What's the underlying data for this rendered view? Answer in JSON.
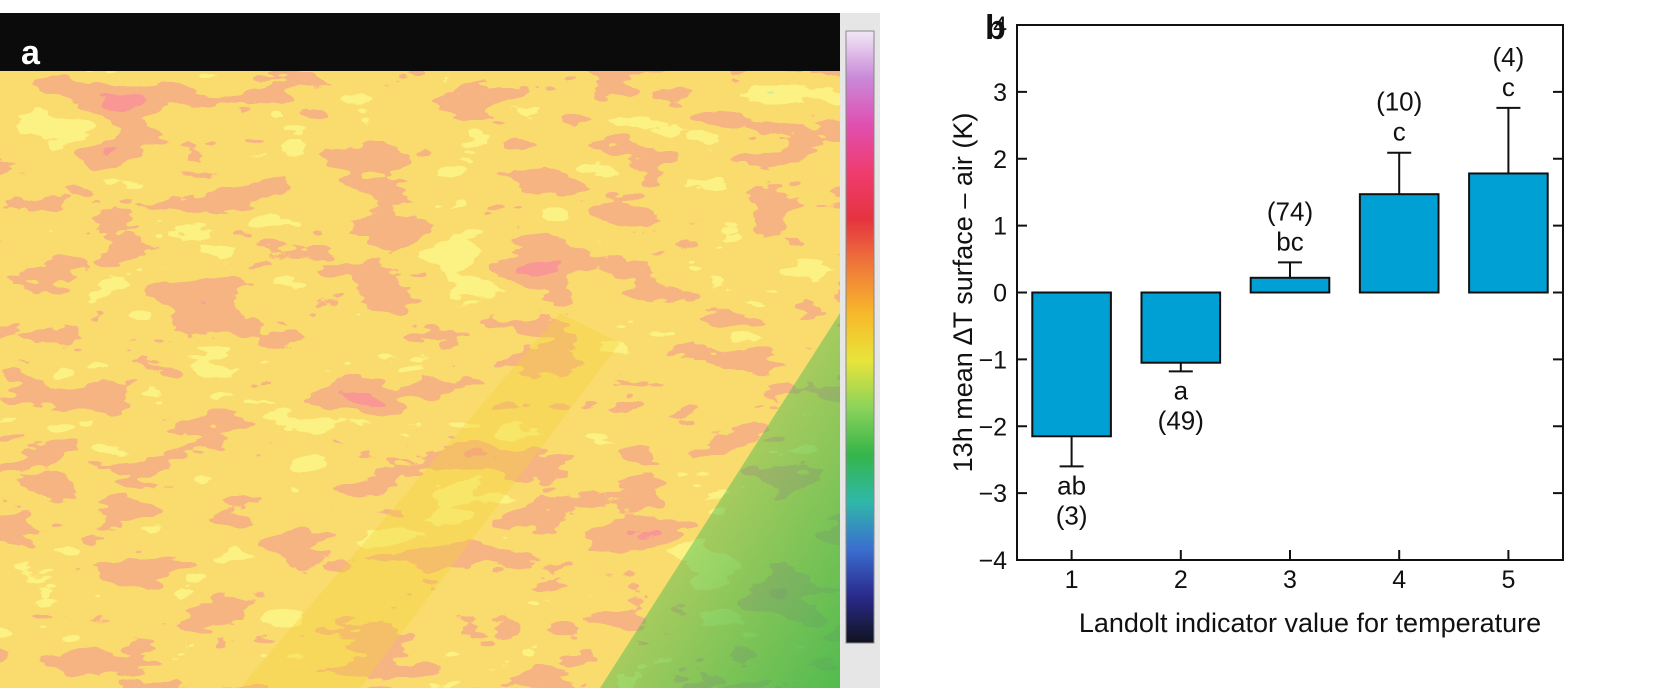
{
  "panel_a": {
    "letter": "a",
    "thermal_palette": [
      "#10131f",
      "#2a2a8c",
      "#3a6fd0",
      "#2fb8a8",
      "#35b54a",
      "#8cd35a",
      "#e8e43a",
      "#f7b82a",
      "#f07a3a",
      "#e5333f",
      "#ef3c6e",
      "#e04fb0",
      "#c989d8",
      "#f2e8f6"
    ],
    "sky_color": "#0b0b0b"
  },
  "chart_data": {
    "type": "bar",
    "panel_letter": "b",
    "categories": [
      "1",
      "2",
      "3",
      "4",
      "5"
    ],
    "values": [
      -2.15,
      -1.05,
      0.22,
      1.47,
      1.78
    ],
    "error_bars": [
      0.45,
      0.13,
      0.23,
      0.62,
      0.98
    ],
    "annotations": [
      {
        "category": "1",
        "letters": "ab",
        "count": "(3)"
      },
      {
        "category": "2",
        "letters": "a",
        "count": "(49)"
      },
      {
        "category": "3",
        "letters": "bc",
        "count": "(74)"
      },
      {
        "category": "4",
        "letters": "c",
        "count": "(10)"
      },
      {
        "category": "5",
        "letters": "c",
        "count": "(4)"
      }
    ],
    "xlabel": "Landolt indicator value for temperature",
    "ylabel": "13h mean ∆T surface – air (K)",
    "ylim": [
      -4,
      4
    ],
    "yticks": [
      "−4",
      "−3",
      "−2",
      "−1",
      "0",
      "1",
      "2",
      "3",
      "4"
    ],
    "bar_color": "#009fd4",
    "grid": false
  }
}
